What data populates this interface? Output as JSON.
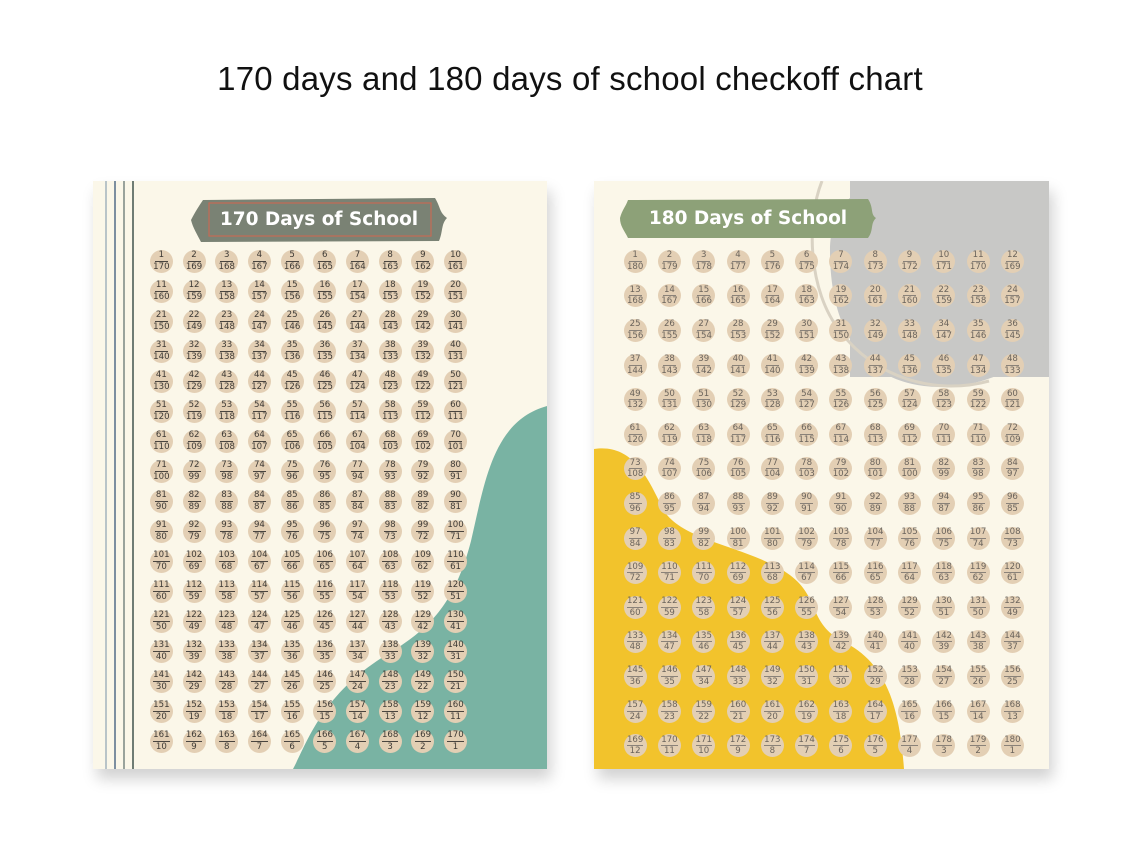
{
  "page_title": "170 days and 180 days of school checkoff chart",
  "posters": [
    {
      "title": "170 Days of School",
      "total": 170,
      "columns": 10,
      "colors": {
        "badge": "#7a8274",
        "accent_shape": "#79b3a3",
        "badge_border": "#c56a55"
      }
    },
    {
      "title": "180 Days of School",
      "total": 180,
      "columns": 12,
      "colors": {
        "badge": "#8da178",
        "accent_shape": "#f2c32c",
        "gray_shape": "#c8c8c6"
      }
    }
  ],
  "colors": {
    "paper": "#fbf7e9",
    "circle": "#e3cfb4",
    "text": "#3e3a35"
  }
}
